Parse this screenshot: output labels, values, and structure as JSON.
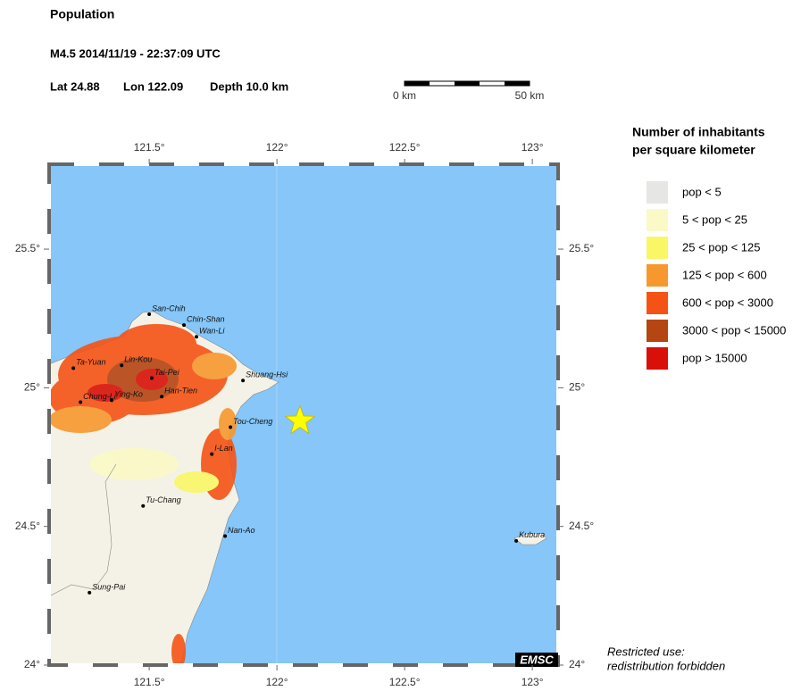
{
  "header": {
    "title": "Population",
    "event": "M4.5  2014/11/19 - 22:37:09 UTC",
    "lat": "Lat 24.88",
    "lon": "Lon 122.09",
    "depth": "Depth  10.0 km"
  },
  "scale_bar": {
    "start": "0 km",
    "end": "50 km"
  },
  "map": {
    "lon_range": [
      121.108,
      123.101
    ],
    "lat_range": [
      24.0,
      25.806
    ],
    "lon_ticks": [
      {
        "value": 121.5,
        "label": "121.5°"
      },
      {
        "value": 122,
        "label": "122°"
      },
      {
        "value": 122.5,
        "label": "122.5°"
      },
      {
        "value": 123,
        "label": "123°"
      }
    ],
    "lat_ticks": [
      {
        "value": 24,
        "label": "24°"
      },
      {
        "value": 24.5,
        "label": "24.5°"
      },
      {
        "value": 25,
        "label": "25°"
      },
      {
        "value": 25.5,
        "label": "25.5°"
      }
    ],
    "epicenter": {
      "lat": 24.88,
      "lon": 122.09,
      "color": "#ffff00"
    },
    "cities": [
      {
        "name": "San-Chih",
        "lon": 121.5,
        "lat": 25.265
      },
      {
        "name": "Chin-Shan",
        "lon": 121.636,
        "lat": 25.226
      },
      {
        "name": "Wan-Li",
        "lon": 121.685,
        "lat": 25.184
      },
      {
        "name": "Ta-Yuan",
        "lon": 121.203,
        "lat": 25.071
      },
      {
        "name": "Lin-Kou",
        "lon": 121.392,
        "lat": 25.081
      },
      {
        "name": "Tai-Pei",
        "lon": 121.51,
        "lat": 25.035
      },
      {
        "name": "Han-Tien",
        "lon": 121.549,
        "lat": 24.968
      },
      {
        "name": "Chung-Li",
        "lon": 121.231,
        "lat": 24.948
      },
      {
        "name": "Ying-Ko",
        "lon": 121.353,
        "lat": 24.955
      },
      {
        "name": "Shuang-Hsi",
        "lon": 121.867,
        "lat": 25.026
      },
      {
        "name": "Tou-Cheng",
        "lon": 121.818,
        "lat": 24.858
      },
      {
        "name": "I-Lan",
        "lon": 121.745,
        "lat": 24.761
      },
      {
        "name": "Tu-Chang",
        "lon": 121.476,
        "lat": 24.574
      },
      {
        "name": "Nan-Ao",
        "lon": 121.797,
        "lat": 24.465
      },
      {
        "name": "Sung-Pai",
        "lon": 121.266,
        "lat": 24.261
      },
      {
        "name": "Kubura",
        "lon": 122.937,
        "lat": 24.448
      }
    ],
    "badge": "EMSC"
  },
  "legend": {
    "title": [
      "Number of inhabitants",
      "per square kilometer"
    ],
    "items": [
      {
        "label": "pop < 5",
        "color": "#e6e6e4"
      },
      {
        "label": "5 < pop < 25",
        "color": "#fbf9c6"
      },
      {
        "label": "25 < pop < 125",
        "color": "#f9f766"
      },
      {
        "label": "125 < pop < 600",
        "color": "#f7982f"
      },
      {
        "label": "600 < pop < 3000",
        "color": "#f55316"
      },
      {
        "label": "3000 < pop < 15000",
        "color": "#b54513"
      },
      {
        "label": "pop > 15000",
        "color": "#d91009"
      }
    ]
  },
  "footer": [
    "Restricted use:",
    "redistribution forbidden"
  ]
}
